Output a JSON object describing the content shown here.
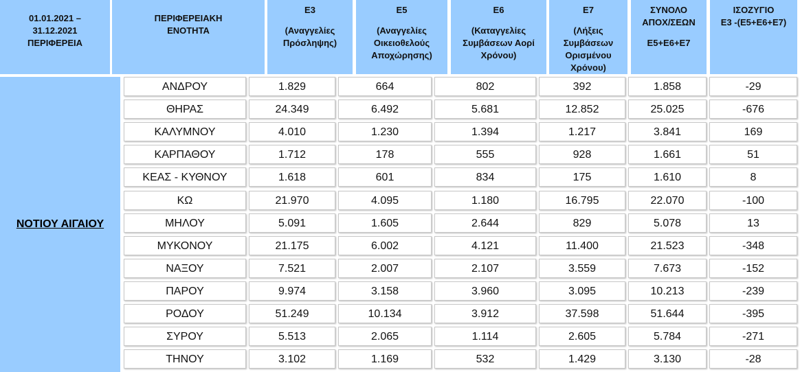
{
  "table": {
    "header": [
      [
        "01.01.2021 –",
        "31.12.2021",
        "ΠΕΡΙΦΕΡΕΙΑ"
      ],
      [
        "ΠΕΡΙΦΕΡΕΙΑΚΗ",
        "ΕΝΟΤΗΤΑ"
      ],
      [
        "Ε3",
        "(Αναγγελίες",
        "Πρόσληψης)"
      ],
      [
        "Ε5",
        "(Αναγγελίες",
        "Οικειοθελούς",
        "Αποχώρησης)"
      ],
      [
        "Ε6",
        "(Καταγγελίες",
        "Συμβάσεων Αορί",
        "Χρόνου)"
      ],
      [
        "Ε7",
        "(Λήξεις",
        "Συμβάσεων",
        "Ορισμένου",
        "Χρόνου)"
      ],
      [
        "ΣΥΝΟΛΟ",
        "ΑΠΟΧ/ΣΕΩΝ",
        "Ε5+Ε6+Ε7"
      ],
      [
        "ΙΣΟΖΥΓΙΟ",
        "Ε3 -(Ε5+Ε6+Ε7)"
      ]
    ],
    "region": "ΝΟΤΙΟΥ ΑΙΓΑΙΟΥ",
    "rows": [
      [
        "ΑΝΔΡΟΥ",
        "1.829",
        "664",
        "802",
        "392",
        "1.858",
        "-29"
      ],
      [
        "ΘΗΡΑΣ",
        "24.349",
        "6.492",
        "5.681",
        "12.852",
        "25.025",
        "-676"
      ],
      [
        "ΚΑΛΥΜΝΟΥ",
        "4.010",
        "1.230",
        "1.394",
        "1.217",
        "3.841",
        "169"
      ],
      [
        "ΚΑΡΠΑΘΟΥ",
        "1.712",
        "178",
        "555",
        "928",
        "1.661",
        "51"
      ],
      [
        "ΚΕΑΣ - ΚΥΘΝΟΥ",
        "1.618",
        "601",
        "834",
        "175",
        "1.610",
        "8"
      ],
      [
        "ΚΩ",
        "21.970",
        "4.095",
        "1.180",
        "16.795",
        "22.070",
        "-100"
      ],
      [
        "ΜΗΛΟΥ",
        "5.091",
        "1.605",
        "2.644",
        "829",
        "5.078",
        "13"
      ],
      [
        "ΜΥΚΟΝΟΥ",
        "21.175",
        "6.002",
        "4.121",
        "11.400",
        "21.523",
        "-348"
      ],
      [
        "ΝΑΞΟΥ",
        "7.521",
        "2.007",
        "2.107",
        "3.559",
        "7.673",
        "-152"
      ],
      [
        "ΠΑΡΟΥ",
        "9.974",
        "3.158",
        "3.960",
        "3.095",
        "10.213",
        "-239"
      ],
      [
        "ΡΟΔΟΥ",
        "51.249",
        "10.134",
        "3.912",
        "37.598",
        "51.644",
        "-395"
      ],
      [
        "ΣΥΡΟΥ",
        "5.513",
        "2.065",
        "1.114",
        "2.605",
        "5.784",
        "-271"
      ],
      [
        "ΤΗΝΟΥ",
        "3.102",
        "1.169",
        "532",
        "1.429",
        "3.130",
        "-28"
      ]
    ]
  }
}
